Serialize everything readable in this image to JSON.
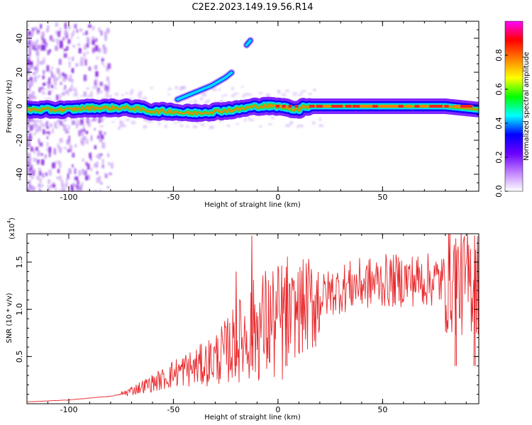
{
  "title": "C2E2.2023.149.19.56.R14",
  "chart_data": [
    {
      "type": "heatmap",
      "xlabel": "Height of straight line (km)",
      "ylabel": "Frequency (Hz)",
      "xlim": [
        -120,
        96
      ],
      "ylim": [
        -50,
        50
      ],
      "xticks": [
        -100,
        -50,
        0,
        50
      ],
      "yticks": [
        -40,
        -20,
        0,
        20,
        40
      ],
      "colorbar": {
        "label": "Normalized spectral amplitude",
        "range": [
          0,
          1
        ],
        "ticks": [
          "0.0",
          "0.2",
          "0.4",
          "0.6",
          "0.8"
        ],
        "colors": [
          "#ffffff",
          "#c080ff",
          "#6a00ff",
          "#0000ff",
          "#00ffff",
          "#00ff00",
          "#ffff00",
          "#ff8000",
          "#ff0000",
          "#ff00ff"
        ]
      },
      "ridges": [
        {
          "x": [
            -120,
            -100,
            -90,
            -80,
            -70,
            -60,
            -50,
            -45,
            -40,
            -30,
            -20,
            -10,
            0,
            10,
            13,
            20,
            40,
            60,
            80,
            96
          ],
          "y": [
            -2,
            -2,
            -1,
            -1,
            -1,
            -3,
            -3,
            -4,
            -4,
            -3,
            -2,
            0,
            0,
            -2,
            0,
            0,
            0,
            0,
            0,
            -2
          ]
        },
        {
          "x": [
            -48,
            -40,
            -32,
            -25,
            -22
          ],
          "y": [
            4,
            8,
            12,
            17,
            20
          ]
        },
        {
          "x": [
            -15,
            -13
          ],
          "y": [
            36,
            39
          ]
        }
      ]
    },
    {
      "type": "line",
      "xlabel": "Height of straight line (km)",
      "ylabel": "SNR (10 * v/v)",
      "y_multiplier": "(x10",
      "y_multiplier_exp": "4",
      "xlim": [
        -120,
        96
      ],
      "ylim": [
        0,
        1.8
      ],
      "xticks": [
        -100,
        -50,
        0,
        50
      ],
      "yticks": [
        "0.5",
        "1.0",
        "1.5"
      ],
      "color": "#e8282c",
      "series": [
        {
          "x": [
            -120,
            -110,
            -100,
            -90,
            -80,
            -75,
            -70,
            -65,
            -60,
            -55,
            -50,
            -45,
            -40,
            -35,
            -30,
            -25,
            -20,
            -15,
            -12,
            -10,
            -5,
            0,
            5,
            10,
            15,
            20,
            25,
            30,
            35,
            40,
            45,
            50,
            55,
            60,
            65,
            70,
            75,
            80,
            82,
            85,
            88,
            90,
            92,
            96
          ],
          "y": [
            0.02,
            0.03,
            0.04,
            0.06,
            0.08,
            0.1,
            0.14,
            0.18,
            0.22,
            0.26,
            0.32,
            0.36,
            0.38,
            0.42,
            0.48,
            0.55,
            0.65,
            0.72,
            0.78,
            0.8,
            0.85,
            0.85,
            0.9,
            1.0,
            1.05,
            1.12,
            1.18,
            1.22,
            1.25,
            1.27,
            1.28,
            1.3,
            1.3,
            1.31,
            1.31,
            1.31,
            1.31,
            1.3,
            1.3,
            1.3,
            1.28,
            1.28,
            1.3,
            1.32
          ]
        }
      ],
      "spikes": [
        {
          "x": -12.5,
          "y": 1.78
        },
        {
          "x": -20,
          "y": 1.4
        },
        {
          "x": 4,
          "y": 1.45
        },
        {
          "x": 85,
          "y": 1.75
        },
        {
          "x": 94,
          "y": 1.78
        }
      ]
    }
  ]
}
